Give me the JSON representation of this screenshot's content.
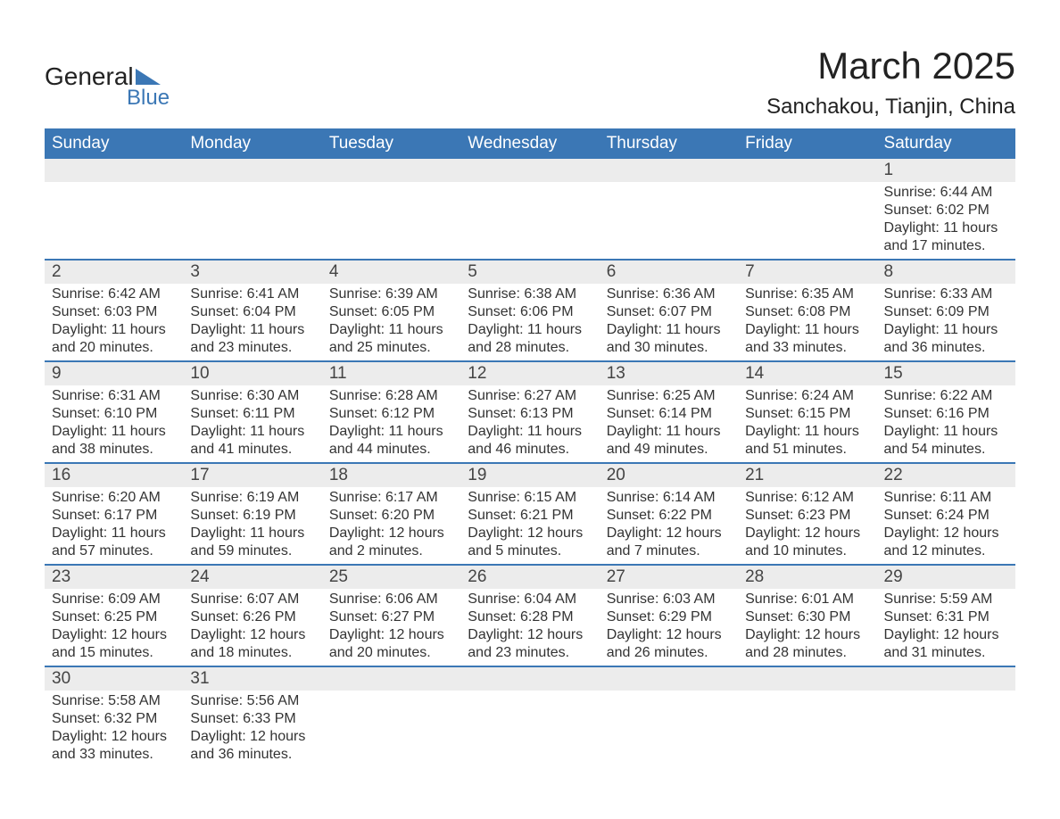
{
  "logo": {
    "word1": "General",
    "word2": "Blue"
  },
  "title": "March 2025",
  "location": "Sanchakou, Tianjin, China",
  "colors": {
    "header_bg": "#3b77b5",
    "header_text": "#ffffff",
    "daynum_bg": "#ececec",
    "row_divider": "#3b77b5",
    "body_text": "#333333",
    "logo_blue": "#3b77b5"
  },
  "fonts": {
    "title_size_pt": 32,
    "header_size_pt": 14,
    "body_size_pt": 12
  },
  "layout": {
    "columns": 7,
    "week_rows": 6,
    "first_weekday": "Sunday"
  },
  "weekdays": [
    "Sunday",
    "Monday",
    "Tuesday",
    "Wednesday",
    "Thursday",
    "Friday",
    "Saturday"
  ],
  "weeks": [
    [
      null,
      null,
      null,
      null,
      null,
      null,
      {
        "day": "1",
        "sunrise": "Sunrise: 6:44 AM",
        "sunset": "Sunset: 6:02 PM",
        "daylight1": "Daylight: 11 hours",
        "daylight2": "and 17 minutes."
      }
    ],
    [
      {
        "day": "2",
        "sunrise": "Sunrise: 6:42 AM",
        "sunset": "Sunset: 6:03 PM",
        "daylight1": "Daylight: 11 hours",
        "daylight2": "and 20 minutes."
      },
      {
        "day": "3",
        "sunrise": "Sunrise: 6:41 AM",
        "sunset": "Sunset: 6:04 PM",
        "daylight1": "Daylight: 11 hours",
        "daylight2": "and 23 minutes."
      },
      {
        "day": "4",
        "sunrise": "Sunrise: 6:39 AM",
        "sunset": "Sunset: 6:05 PM",
        "daylight1": "Daylight: 11 hours",
        "daylight2": "and 25 minutes."
      },
      {
        "day": "5",
        "sunrise": "Sunrise: 6:38 AM",
        "sunset": "Sunset: 6:06 PM",
        "daylight1": "Daylight: 11 hours",
        "daylight2": "and 28 minutes."
      },
      {
        "day": "6",
        "sunrise": "Sunrise: 6:36 AM",
        "sunset": "Sunset: 6:07 PM",
        "daylight1": "Daylight: 11 hours",
        "daylight2": "and 30 minutes."
      },
      {
        "day": "7",
        "sunrise": "Sunrise: 6:35 AM",
        "sunset": "Sunset: 6:08 PM",
        "daylight1": "Daylight: 11 hours",
        "daylight2": "and 33 minutes."
      },
      {
        "day": "8",
        "sunrise": "Sunrise: 6:33 AM",
        "sunset": "Sunset: 6:09 PM",
        "daylight1": "Daylight: 11 hours",
        "daylight2": "and 36 minutes."
      }
    ],
    [
      {
        "day": "9",
        "sunrise": "Sunrise: 6:31 AM",
        "sunset": "Sunset: 6:10 PM",
        "daylight1": "Daylight: 11 hours",
        "daylight2": "and 38 minutes."
      },
      {
        "day": "10",
        "sunrise": "Sunrise: 6:30 AM",
        "sunset": "Sunset: 6:11 PM",
        "daylight1": "Daylight: 11 hours",
        "daylight2": "and 41 minutes."
      },
      {
        "day": "11",
        "sunrise": "Sunrise: 6:28 AM",
        "sunset": "Sunset: 6:12 PM",
        "daylight1": "Daylight: 11 hours",
        "daylight2": "and 44 minutes."
      },
      {
        "day": "12",
        "sunrise": "Sunrise: 6:27 AM",
        "sunset": "Sunset: 6:13 PM",
        "daylight1": "Daylight: 11 hours",
        "daylight2": "and 46 minutes."
      },
      {
        "day": "13",
        "sunrise": "Sunrise: 6:25 AM",
        "sunset": "Sunset: 6:14 PM",
        "daylight1": "Daylight: 11 hours",
        "daylight2": "and 49 minutes."
      },
      {
        "day": "14",
        "sunrise": "Sunrise: 6:24 AM",
        "sunset": "Sunset: 6:15 PM",
        "daylight1": "Daylight: 11 hours",
        "daylight2": "and 51 minutes."
      },
      {
        "day": "15",
        "sunrise": "Sunrise: 6:22 AM",
        "sunset": "Sunset: 6:16 PM",
        "daylight1": "Daylight: 11 hours",
        "daylight2": "and 54 minutes."
      }
    ],
    [
      {
        "day": "16",
        "sunrise": "Sunrise: 6:20 AM",
        "sunset": "Sunset: 6:17 PM",
        "daylight1": "Daylight: 11 hours",
        "daylight2": "and 57 minutes."
      },
      {
        "day": "17",
        "sunrise": "Sunrise: 6:19 AM",
        "sunset": "Sunset: 6:19 PM",
        "daylight1": "Daylight: 11 hours",
        "daylight2": "and 59 minutes."
      },
      {
        "day": "18",
        "sunrise": "Sunrise: 6:17 AM",
        "sunset": "Sunset: 6:20 PM",
        "daylight1": "Daylight: 12 hours",
        "daylight2": "and 2 minutes."
      },
      {
        "day": "19",
        "sunrise": "Sunrise: 6:15 AM",
        "sunset": "Sunset: 6:21 PM",
        "daylight1": "Daylight: 12 hours",
        "daylight2": "and 5 minutes."
      },
      {
        "day": "20",
        "sunrise": "Sunrise: 6:14 AM",
        "sunset": "Sunset: 6:22 PM",
        "daylight1": "Daylight: 12 hours",
        "daylight2": "and 7 minutes."
      },
      {
        "day": "21",
        "sunrise": "Sunrise: 6:12 AM",
        "sunset": "Sunset: 6:23 PM",
        "daylight1": "Daylight: 12 hours",
        "daylight2": "and 10 minutes."
      },
      {
        "day": "22",
        "sunrise": "Sunrise: 6:11 AM",
        "sunset": "Sunset: 6:24 PM",
        "daylight1": "Daylight: 12 hours",
        "daylight2": "and 12 minutes."
      }
    ],
    [
      {
        "day": "23",
        "sunrise": "Sunrise: 6:09 AM",
        "sunset": "Sunset: 6:25 PM",
        "daylight1": "Daylight: 12 hours",
        "daylight2": "and 15 minutes."
      },
      {
        "day": "24",
        "sunrise": "Sunrise: 6:07 AM",
        "sunset": "Sunset: 6:26 PM",
        "daylight1": "Daylight: 12 hours",
        "daylight2": "and 18 minutes."
      },
      {
        "day": "25",
        "sunrise": "Sunrise: 6:06 AM",
        "sunset": "Sunset: 6:27 PM",
        "daylight1": "Daylight: 12 hours",
        "daylight2": "and 20 minutes."
      },
      {
        "day": "26",
        "sunrise": "Sunrise: 6:04 AM",
        "sunset": "Sunset: 6:28 PM",
        "daylight1": "Daylight: 12 hours",
        "daylight2": "and 23 minutes."
      },
      {
        "day": "27",
        "sunrise": "Sunrise: 6:03 AM",
        "sunset": "Sunset: 6:29 PM",
        "daylight1": "Daylight: 12 hours",
        "daylight2": "and 26 minutes."
      },
      {
        "day": "28",
        "sunrise": "Sunrise: 6:01 AM",
        "sunset": "Sunset: 6:30 PM",
        "daylight1": "Daylight: 12 hours",
        "daylight2": "and 28 minutes."
      },
      {
        "day": "29",
        "sunrise": "Sunrise: 5:59 AM",
        "sunset": "Sunset: 6:31 PM",
        "daylight1": "Daylight: 12 hours",
        "daylight2": "and 31 minutes."
      }
    ],
    [
      {
        "day": "30",
        "sunrise": "Sunrise: 5:58 AM",
        "sunset": "Sunset: 6:32 PM",
        "daylight1": "Daylight: 12 hours",
        "daylight2": "and 33 minutes."
      },
      {
        "day": "31",
        "sunrise": "Sunrise: 5:56 AM",
        "sunset": "Sunset: 6:33 PM",
        "daylight1": "Daylight: 12 hours",
        "daylight2": "and 36 minutes."
      },
      null,
      null,
      null,
      null,
      null
    ]
  ]
}
